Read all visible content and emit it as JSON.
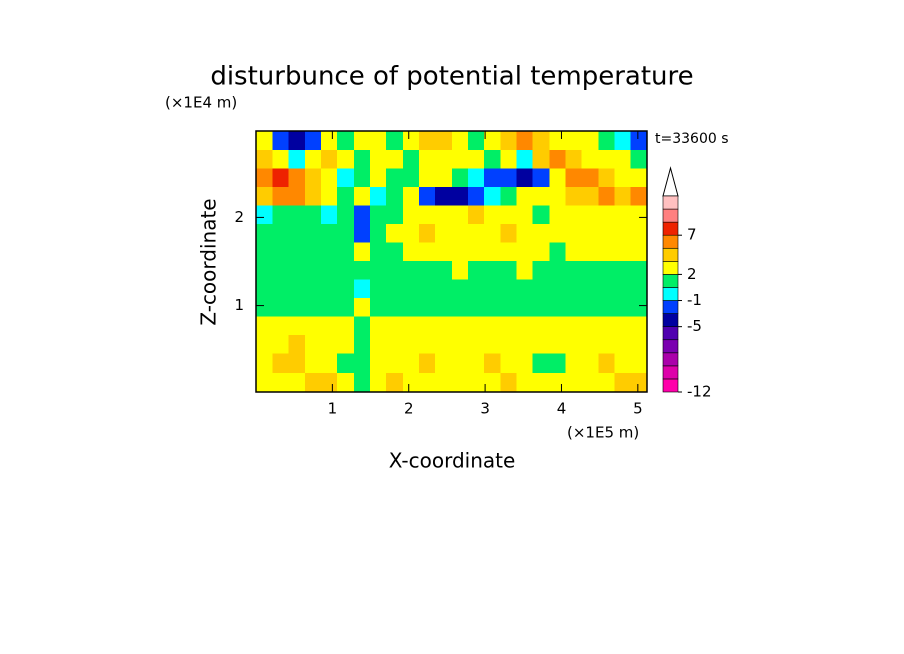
{
  "chart_data": {
    "type": "contour",
    "title": "disturbunce of potential temperature",
    "xlabel": "X-coordinate",
    "ylabel": "Z-coordinate",
    "x_unit": "(×1E5 m)",
    "y_unit": "(×1E4 m)",
    "annotation": "t=33600 s",
    "xlim": [
      0,
      5.12
    ],
    "ylim": [
      0.02,
      2.98
    ],
    "xticks": [
      1,
      2,
      3,
      4,
      5
    ],
    "yticks": [
      1,
      2
    ],
    "x": [
      0.107,
      0.32,
      0.53,
      0.75,
      0.96,
      1.17,
      1.39,
      1.6,
      1.81,
      2.03,
      2.24,
      2.45,
      2.67,
      2.88,
      3.09,
      3.31,
      3.52,
      3.73,
      3.95,
      4.16,
      4.37,
      4.59,
      4.8,
      5.01
    ],
    "y": [
      2.87,
      2.66,
      2.45,
      2.24,
      2.03,
      1.82,
      1.61,
      1.4,
      1.19,
      0.98,
      0.77,
      0.56,
      0.35,
      0.13
    ],
    "z": [
      [
        2.5,
        -2,
        -4,
        -2,
        2.5,
        1,
        2.5,
        2.5,
        1,
        2.5,
        4,
        4,
        2.5,
        1,
        2.5,
        4,
        6,
        4,
        2.5,
        2.5,
        2.5,
        1,
        -0.5,
        -2
      ],
      [
        4,
        2.5,
        -0.5,
        2.5,
        4,
        2.5,
        1,
        2.5,
        2.5,
        1,
        2.5,
        2.5,
        2.5,
        2.5,
        1,
        2.5,
        -0.5,
        4,
        6,
        4,
        2.5,
        2.5,
        2.5,
        1
      ],
      [
        6,
        8,
        6,
        4,
        2.5,
        -0.5,
        1,
        2.5,
        1,
        1,
        2.5,
        2.5,
        1,
        -0.5,
        -2,
        -2,
        -4,
        -2,
        2.5,
        6,
        6,
        4,
        2.5,
        2.5
      ],
      [
        4,
        6,
        6,
        4,
        2.5,
        1,
        2.5,
        -0.5,
        1,
        2.5,
        -2,
        -4,
        -4,
        -2,
        -0.5,
        1,
        2.5,
        2.5,
        2.5,
        4,
        4,
        6,
        4,
        6
      ],
      [
        -0.5,
        1,
        1,
        1,
        -0.5,
        1,
        -2,
        1,
        1,
        2.5,
        2.5,
        2.5,
        2.5,
        4,
        2.5,
        2.5,
        2.5,
        1,
        2.5,
        2.5,
        2.5,
        2.5,
        2.5,
        2.5
      ],
      [
        1,
        1,
        1,
        1,
        1,
        1,
        -2,
        1,
        2.5,
        2.5,
        4,
        2.5,
        2.5,
        2.5,
        2.5,
        4,
        2.5,
        2.5,
        2.5,
        2.5,
        2.5,
        2.5,
        2.5,
        2.5
      ],
      [
        1,
        1,
        1,
        1,
        1,
        1,
        2.5,
        1,
        1,
        2.5,
        2.5,
        2.5,
        2.5,
        2.5,
        2.5,
        2.5,
        2.5,
        2.5,
        1,
        2.5,
        2.5,
        2.5,
        2.5,
        2.5
      ],
      [
        1,
        1,
        1,
        1,
        1,
        1,
        1,
        1,
        1,
        1,
        1,
        1,
        2.5,
        1,
        1,
        1,
        2.5,
        1,
        1,
        1,
        1,
        1,
        1,
        1
      ],
      [
        1,
        1,
        1,
        1,
        1,
        1,
        -0.5,
        1,
        1,
        1,
        1,
        1,
        1,
        1,
        1,
        1,
        1,
        1,
        1,
        1,
        1,
        1,
        1,
        1
      ],
      [
        1,
        1,
        1,
        1,
        1,
        1,
        2.5,
        1,
        1,
        1,
        1,
        1,
        1,
        1,
        1,
        1,
        1,
        1,
        1,
        1,
        1,
        1,
        1,
        1
      ],
      [
        2.5,
        2.5,
        2.5,
        2.5,
        2.5,
        2.5,
        1,
        2.5,
        2.5,
        2.5,
        2.5,
        2.5,
        2.5,
        2.5,
        2.5,
        2.5,
        2.5,
        2.5,
        2.5,
        2.5,
        2.5,
        2.5,
        2.5,
        2.5
      ],
      [
        2.5,
        2.5,
        4,
        2.5,
        2.5,
        2.5,
        1,
        2.5,
        2.5,
        2.5,
        2.5,
        2.5,
        2.5,
        2.5,
        2.5,
        2.5,
        2.5,
        2.5,
        2.5,
        2.5,
        2.5,
        2.5,
        2.5,
        2.5
      ],
      [
        2.5,
        4,
        4,
        2.5,
        2.5,
        1,
        1,
        2.5,
        2.5,
        2.5,
        4,
        2.5,
        2.5,
        2.5,
        4,
        2.5,
        2.5,
        1,
        1,
        2.5,
        2.5,
        4,
        2.5,
        2.5
      ],
      [
        2.5,
        2.5,
        2.5,
        4,
        4,
        2.5,
        1,
        2.5,
        4,
        2.5,
        2.5,
        2.5,
        2.5,
        2.5,
        2.5,
        4,
        2.5,
        2.5,
        2.5,
        2.5,
        2.5,
        2.5,
        4,
        4
      ]
    ],
    "colorbar": {
      "levels": [
        -12,
        -10,
        -8,
        -7,
        -6,
        -5,
        -3,
        -1,
        0,
        2,
        3,
        5,
        7,
        9,
        11,
        13
      ],
      "colors": [
        "#ff00aa",
        "#dd00aa",
        "#aa00aa",
        "#7a00b0",
        "#5000b0",
        "#0000a0",
        "#0040ff",
        "#00ffff",
        "#00ee66",
        "#ffff00",
        "#ffcc00",
        "#ff8800",
        "#ee2200",
        "#ff8080",
        "#ffc0c0"
      ],
      "ticks": [
        -12,
        -5,
        -1,
        2,
        7
      ]
    }
  }
}
